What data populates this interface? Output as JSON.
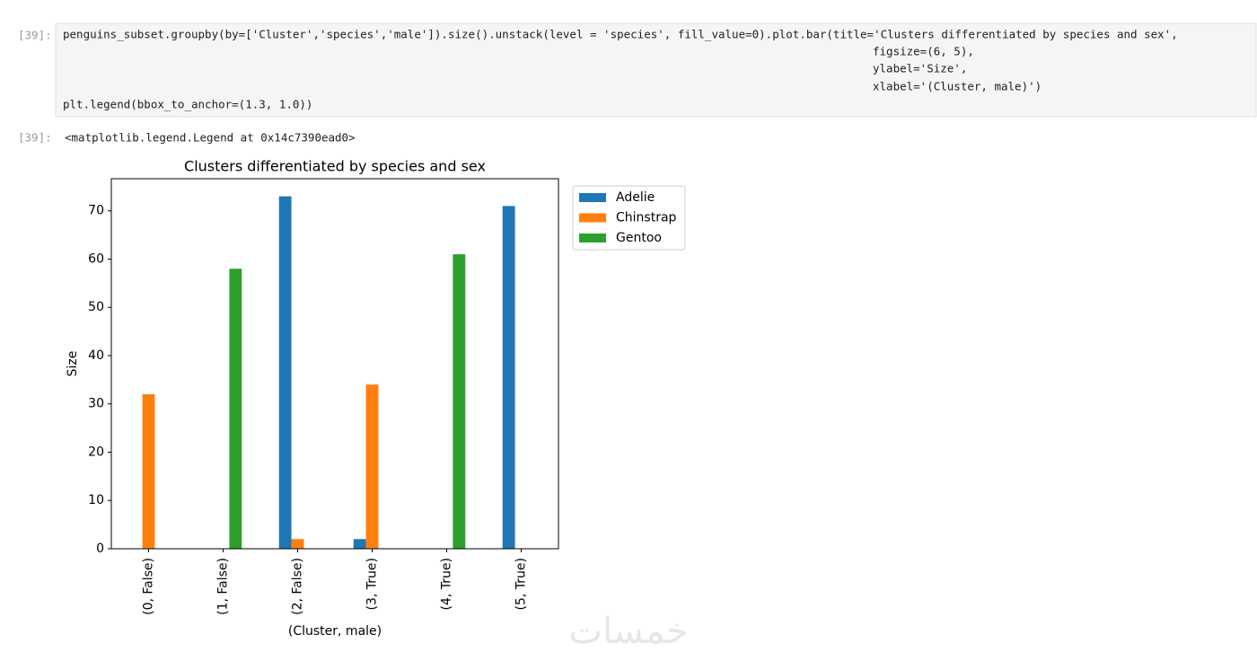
{
  "input_cell": {
    "prompt": "[39]:",
    "lines": [
      "penguins_subset.groupby(by=['Cluster','species','male']).size().unstack(level = 'species', fill_value=0).plot.bar(title='Clusters differentiated by species and sex',",
      "figsize=(6, 5),",
      "ylabel='Size',",
      "xlabel='(Cluster, male)')",
      "plt.legend(bbox_to_anchor=(1.3, 1.0))"
    ]
  },
  "output_cell": {
    "prompt": "[39]:",
    "text": "<matplotlib.legend.Legend at 0x14c7390ead0>"
  },
  "watermark": "خمسات",
  "chart_data": {
    "type": "bar",
    "title": "Clusters differentiated by species and sex",
    "x_label": "(Cluster, male)",
    "y_label": "Size",
    "categories": [
      "(0, False)",
      "(1, False)",
      "(2, False)",
      "(3, True)",
      "(4, True)",
      "(5, True)"
    ],
    "series": [
      {
        "name": "Adelie",
        "color": "#1f77b4",
        "values": [
          0,
          0,
          73,
          2,
          0,
          71
        ]
      },
      {
        "name": "Chinstrap",
        "color": "#ff7f0e",
        "values": [
          32,
          0,
          2,
          34,
          0,
          0
        ]
      },
      {
        "name": "Gentoo",
        "color": "#2ca02c",
        "values": [
          0,
          58,
          0,
          0,
          61,
          0
        ]
      }
    ],
    "ylim": [
      0,
      76.65
    ],
    "yticks": [
      0,
      10,
      20,
      30,
      40,
      50,
      60,
      70
    ],
    "grid": false,
    "legend": "outside-upper-right"
  }
}
